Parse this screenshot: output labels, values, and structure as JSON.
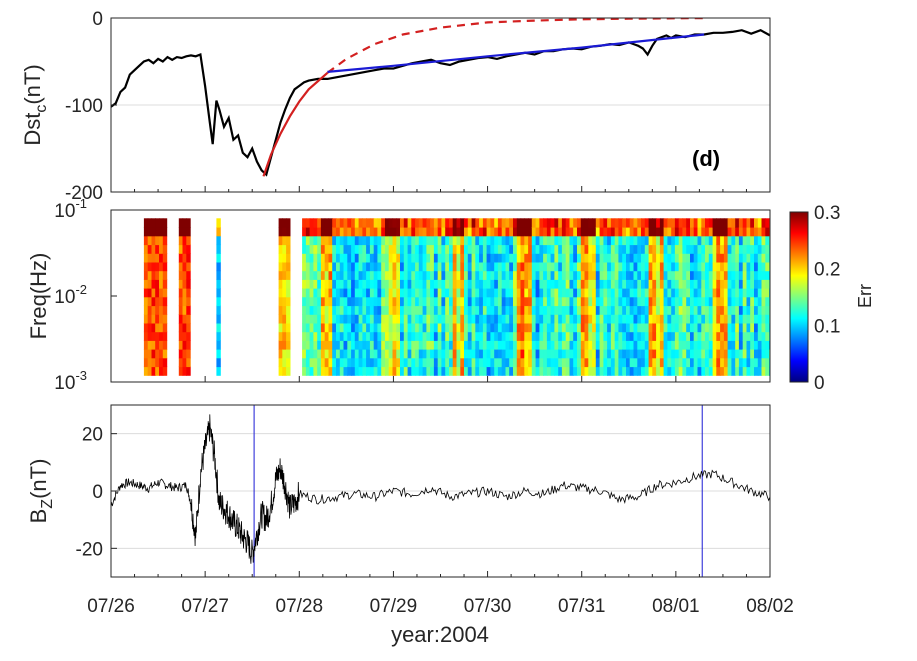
{
  "figure": {
    "x_label": "year:2004",
    "x_ticks": [
      "07/26",
      "07/27",
      "07/28",
      "07/29",
      "07/30",
      "07/31",
      "08/01",
      "08/02"
    ],
    "panel_label": "(d)"
  },
  "chart_data": [
    {
      "type": "line",
      "ylabel_main": "Dst",
      "ylabel_sub": "c",
      "ylabel_unit": "(nT)",
      "xlim": [
        0,
        7
      ],
      "ylim": [
        -200,
        0
      ],
      "y_ticks": [
        0,
        -100,
        -200
      ],
      "grid": true,
      "series": [
        {
          "color": "#000000",
          "style": "solid",
          "x": [
            0.0,
            0.05,
            0.1,
            0.15,
            0.2,
            0.25,
            0.3,
            0.35,
            0.4,
            0.45,
            0.5,
            0.55,
            0.6,
            0.65,
            0.7,
            0.75,
            0.8,
            0.85,
            0.9,
            0.95,
            1.0,
            1.05,
            1.08,
            1.12,
            1.15,
            1.2,
            1.25,
            1.3,
            1.35,
            1.4,
            1.45,
            1.5,
            1.55,
            1.6,
            1.65,
            1.7,
            1.75,
            1.8,
            1.85,
            1.9,
            1.95,
            2.0,
            2.05,
            2.1,
            2.2,
            2.3,
            2.4,
            2.5,
            2.6,
            2.7,
            2.8,
            2.9,
            3.0,
            3.1,
            3.2,
            3.3,
            3.4,
            3.5,
            3.6,
            3.7,
            3.8,
            3.9,
            4.0,
            4.1,
            4.2,
            4.3,
            4.4,
            4.5,
            4.6,
            4.7,
            4.8,
            4.9,
            5.0,
            5.1,
            5.2,
            5.3,
            5.4,
            5.5,
            5.6,
            5.65,
            5.7,
            5.75,
            5.8,
            5.85,
            5.9,
            5.95,
            6.0,
            6.1,
            6.2,
            6.3,
            6.4,
            6.5,
            6.6,
            6.7,
            6.8,
            6.9,
            7.0
          ],
          "y": [
            -102,
            -98,
            -85,
            -80,
            -65,
            -60,
            -55,
            -50,
            -48,
            -52,
            -47,
            -50,
            -45,
            -48,
            -45,
            -46,
            -44,
            -43,
            -44,
            -42,
            -78,
            -120,
            -145,
            -95,
            -105,
            -125,
            -115,
            -140,
            -135,
            -155,
            -160,
            -150,
            -165,
            -175,
            -180,
            -160,
            -140,
            -120,
            -105,
            -92,
            -82,
            -78,
            -74,
            -72,
            -70,
            -70,
            -68,
            -66,
            -64,
            -62,
            -60,
            -58,
            -58,
            -55,
            -52,
            -50,
            -48,
            -52,
            -54,
            -50,
            -48,
            -46,
            -45,
            -47,
            -44,
            -42,
            -40,
            -42,
            -38,
            -38,
            -36,
            -35,
            -36,
            -33,
            -32,
            -30,
            -31,
            -28,
            -32,
            -35,
            -42,
            -32,
            -24,
            -22,
            -20,
            -23,
            -20,
            -22,
            -19,
            -19,
            -17,
            -17,
            -16,
            -14,
            -18,
            -14,
            -20
          ]
        },
        {
          "color": "#d32020",
          "style": "solid",
          "x": [
            1.62,
            1.7,
            1.8,
            1.9,
            2.0,
            2.1,
            2.3
          ],
          "y": [
            -182,
            -157,
            -133,
            -113,
            -96,
            -82,
            -63
          ]
        },
        {
          "color": "#d32020",
          "style": "dashed",
          "x": [
            2.3,
            2.5,
            2.8,
            3.1,
            3.5,
            4.0,
            4.5,
            5.0,
            5.5,
            6.0,
            6.3
          ],
          "y": [
            -63,
            -47,
            -30,
            -19,
            -11,
            -5,
            -3,
            -1.5,
            -0.8,
            -0.3,
            -0.1
          ]
        },
        {
          "color": "#1b1bd4",
          "style": "solid",
          "x": [
            2.3,
            3.0,
            4.0,
            5.0,
            6.3
          ],
          "y": [
            -62,
            -55,
            -44,
            -34,
            -19
          ]
        }
      ]
    },
    {
      "type": "heatmap",
      "ylabel": "Freq(Hz)",
      "y_scale": "log",
      "ylim": [
        0.001,
        0.1
      ],
      "y_ticks": [
        "10",
        "10",
        "10"
      ],
      "y_tick_exponents": [
        "-1",
        "-2",
        "-3"
      ],
      "xlim": [
        0,
        7
      ],
      "data_xrange": [
        0.35,
        7.0
      ],
      "data_frange": [
        0.0012,
        0.08
      ],
      "colorbar": {
        "label": "Err",
        "ticks": [
          "0.3",
          "0.2",
          "0.1",
          "0"
        ],
        "range": [
          0,
          0.3
        ],
        "colors": [
          "#00007f",
          "#0000ff",
          "#007fff",
          "#00ffff",
          "#7fff7f",
          "#ffff00",
          "#ff7f00",
          "#ff0000",
          "#7f0000"
        ]
      }
    },
    {
      "type": "line",
      "ylabel_main": "B",
      "ylabel_sub": "Z",
      "ylabel_unit": "(nT)",
      "xlim": [
        0,
        7
      ],
      "ylim": [
        -30,
        30
      ],
      "y_ticks": [
        20,
        0,
        -20
      ],
      "grid": true,
      "vertical_lines_x": [
        1.52,
        6.28
      ],
      "vertical_line_color": "#1b1bd4",
      "series": [
        {
          "color": "#000000",
          "style": "solid",
          "x": [
            0.0,
            0.1,
            0.2,
            0.3,
            0.4,
            0.5,
            0.6,
            0.7,
            0.8,
            0.85,
            0.9,
            0.95,
            1.0,
            1.05,
            1.1,
            1.15,
            1.2,
            1.25,
            1.3,
            1.35,
            1.4,
            1.45,
            1.5,
            1.55,
            1.6,
            1.65,
            1.7,
            1.75,
            1.8,
            1.85,
            1.9,
            1.95,
            2.0,
            2.2,
            2.4,
            2.6,
            2.8,
            3.0,
            3.2,
            3.4,
            3.6,
            3.8,
            4.0,
            4.2,
            4.4,
            4.6,
            4.8,
            5.0,
            5.2,
            5.4,
            5.6,
            5.8,
            6.0,
            6.2,
            6.4,
            6.6,
            6.8,
            7.0
          ],
          "y": [
            -5,
            2,
            3,
            2,
            1,
            3,
            2,
            1,
            2,
            -4,
            -16,
            6,
            15,
            22,
            12,
            -4,
            -6,
            -8,
            -11,
            -13,
            -16,
            -18,
            -22,
            -15,
            -8,
            -10,
            -5,
            4,
            8,
            2,
            -6,
            -4,
            -1,
            -3,
            -2,
            -1,
            -2,
            0,
            -1,
            1,
            -2,
            -1,
            0,
            -2,
            0,
            -1,
            2,
            1,
            0,
            -3,
            -2,
            2,
            3,
            5,
            6,
            3,
            0,
            -2
          ]
        }
      ]
    }
  ]
}
